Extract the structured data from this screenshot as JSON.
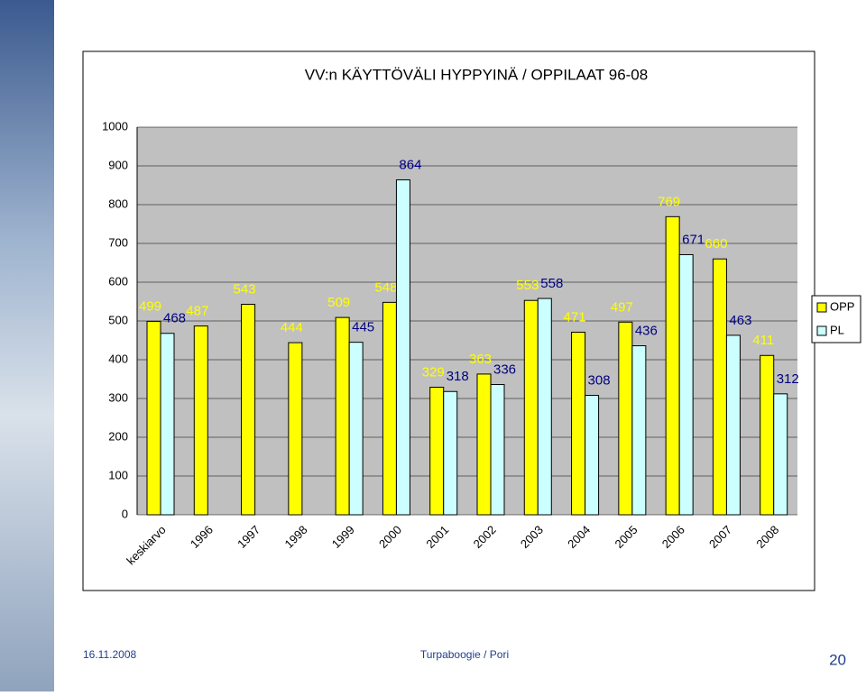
{
  "chart_data": {
    "type": "bar",
    "title": "VV:n KÄYTTÖVÄLI HYPPYINÄ / OPPILAAT 96-08",
    "categories": [
      "keskiarvo",
      "1996",
      "1997",
      "1998",
      "1999",
      "2000",
      "2001",
      "2002",
      "2003",
      "2004",
      "2005",
      "2006",
      "2007",
      "2008"
    ],
    "series": [
      {
        "name": "OPP",
        "color": "#ffff00",
        "values": [
          499,
          487,
          543,
          444,
          509,
          548,
          329,
          363,
          553,
          471,
          497,
          769,
          660,
          411
        ]
      },
      {
        "name": "PL",
        "color": "#ccffff",
        "values": [
          468,
          null,
          null,
          null,
          445,
          864,
          318,
          336,
          558,
          308,
          436,
          671,
          463,
          312
        ]
      }
    ],
    "ylim": [
      0,
      1000
    ],
    "yticks": [
      0,
      100,
      200,
      300,
      400,
      500,
      600,
      700,
      800,
      900,
      1000
    ],
    "grid": true,
    "legend": "right"
  },
  "footer": {
    "date": "16.11.2008",
    "source": "Turpaboogie / Pori",
    "page": "20"
  }
}
